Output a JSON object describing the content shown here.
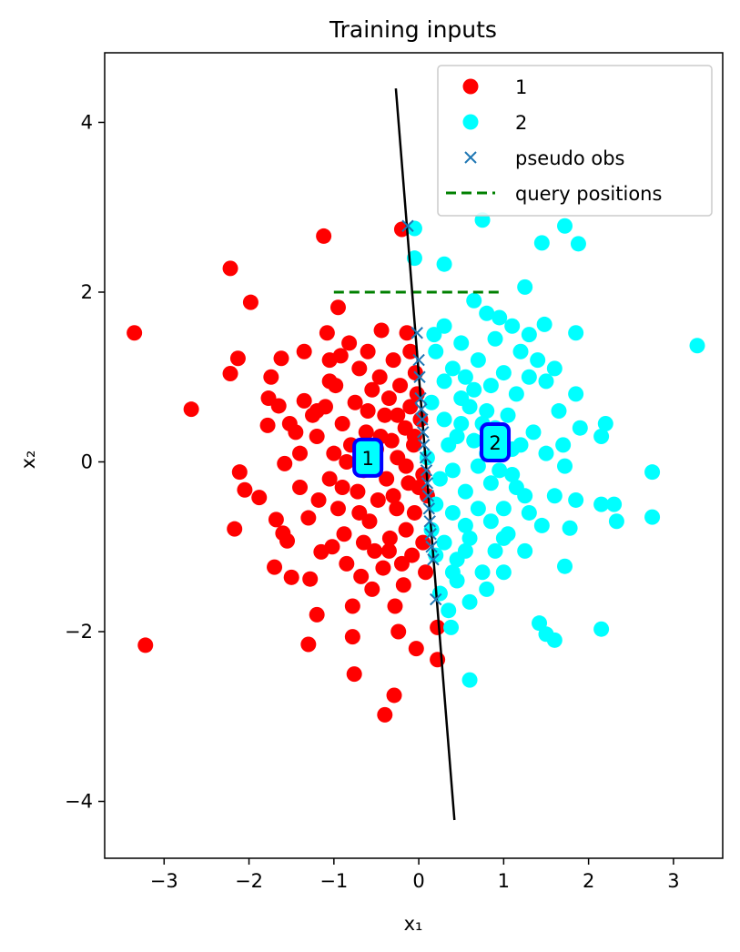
{
  "chart_data": {
    "type": "scatter",
    "title": "Training inputs",
    "xlabel": "x₁",
    "ylabel": "x₂",
    "xlim": [
      -3.7,
      3.58
    ],
    "ylim": [
      -4.67,
      4.82
    ],
    "xticks": [
      -3,
      -2,
      -1,
      0,
      1,
      2,
      3
    ],
    "xtick_labels": [
      "−3",
      "−2",
      "−1",
      "0",
      "1",
      "2",
      "3"
    ],
    "yticks": [
      -4,
      -2,
      0,
      2,
      4
    ],
    "ytick_labels": [
      "−4",
      "−2",
      "0",
      "2",
      "4"
    ],
    "grid": false,
    "legend_position": "top-right",
    "series": [
      {
        "name": "1",
        "marker": "circle",
        "color": "#ff0000",
        "points": [
          [
            -3.35,
            1.52
          ],
          [
            -3.22,
            -2.16
          ],
          [
            -2.68,
            0.62
          ],
          [
            -2.22,
            2.28
          ],
          [
            -2.22,
            1.04
          ],
          [
            -2.17,
            -0.79
          ],
          [
            -2.13,
            1.22
          ],
          [
            -2.11,
            -0.12
          ],
          [
            -2.05,
            -0.33
          ],
          [
            -1.98,
            1.88
          ],
          [
            -1.88,
            -0.42
          ],
          [
            -1.78,
            0.43
          ],
          [
            -1.77,
            0.75
          ],
          [
            -1.74,
            1.0
          ],
          [
            -1.7,
            -1.24
          ],
          [
            -1.68,
            -0.68
          ],
          [
            -1.65,
            0.66
          ],
          [
            -1.62,
            1.22
          ],
          [
            -1.6,
            -0.84
          ],
          [
            -1.58,
            -0.02
          ],
          [
            -1.55,
            -0.93
          ],
          [
            -1.52,
            0.45
          ],
          [
            -1.5,
            -1.36
          ],
          [
            -1.45,
            0.35
          ],
          [
            -1.4,
            0.1
          ],
          [
            -1.35,
            0.72
          ],
          [
            -1.3,
            -0.66
          ],
          [
            -1.28,
            -1.38
          ],
          [
            -1.3,
            -2.15
          ],
          [
            -1.25,
            0.55
          ],
          [
            -1.2,
            0.3
          ],
          [
            -1.18,
            -0.45
          ],
          [
            -1.15,
            -1.06
          ],
          [
            -1.2,
            -1.8
          ],
          [
            -1.1,
            0.65
          ],
          [
            -1.12,
            2.66
          ],
          [
            -1.08,
            1.52
          ],
          [
            -1.05,
            -0.2
          ],
          [
            -1.05,
            1.2
          ],
          [
            -1.02,
            -1.0
          ],
          [
            -1.0,
            0.1
          ],
          [
            -0.98,
            0.9
          ],
          [
            -0.95,
            -0.55
          ],
          [
            -0.95,
            1.82
          ],
          [
            -0.92,
            1.25
          ],
          [
            -0.9,
            0.45
          ],
          [
            -0.88,
            -0.85
          ],
          [
            -0.85,
            -1.2
          ],
          [
            -0.82,
            1.4
          ],
          [
            -0.8,
            0.2
          ],
          [
            -0.78,
            -2.06
          ],
          [
            -0.78,
            -1.7
          ],
          [
            -0.76,
            -2.5
          ],
          [
            -0.75,
            0.7
          ],
          [
            -0.72,
            -0.35
          ],
          [
            -0.7,
            1.1
          ],
          [
            -0.68,
            -1.35
          ],
          [
            -0.65,
            -0.1
          ],
          [
            -0.62,
            0.35
          ],
          [
            -0.6,
            1.3
          ],
          [
            -0.58,
            -0.7
          ],
          [
            -0.55,
            0.85
          ],
          [
            -0.52,
            -1.05
          ],
          [
            -0.5,
            0.15
          ],
          [
            -0.48,
            -0.45
          ],
          [
            -0.46,
            1.0
          ],
          [
            -0.44,
            1.55
          ],
          [
            -0.42,
            -1.25
          ],
          [
            -0.4,
            0.55
          ],
          [
            -0.38,
            -0.2
          ],
          [
            -0.35,
            0.75
          ],
          [
            -0.34,
            -0.9
          ],
          [
            -0.32,
            0.25
          ],
          [
            -0.3,
            1.2
          ],
          [
            -0.29,
            -2.75
          ],
          [
            -0.28,
            -1.7
          ],
          [
            -0.26,
            -0.55
          ],
          [
            -0.25,
            0.05
          ],
          [
            -0.24,
            -2.0
          ],
          [
            -0.22,
            0.9
          ],
          [
            -0.2,
            2.74
          ],
          [
            -0.18,
            -1.45
          ],
          [
            -0.16,
            0.4
          ],
          [
            -0.15,
            -0.8
          ],
          [
            -0.14,
            1.52
          ],
          [
            -0.12,
            -0.25
          ],
          [
            -0.1,
            0.65
          ],
          [
            -0.08,
            -1.1
          ],
          [
            -0.06,
            0.2
          ],
          [
            -0.05,
            -0.6
          ],
          [
            -0.04,
            1.05
          ],
          [
            -0.03,
            -2.2
          ],
          [
            -0.02,
            0.8
          ],
          [
            0.0,
            -0.3
          ],
          [
            0.02,
            0.5
          ],
          [
            0.05,
            -0.95
          ],
          [
            0.08,
            -1.3
          ],
          [
            0.1,
            -0.4
          ],
          [
            0.22,
            -1.95
          ],
          [
            0.22,
            -2.33
          ],
          [
            -0.4,
            -2.98
          ],
          [
            -1.05,
            0.95
          ],
          [
            -1.2,
            0.6
          ],
          [
            -0.9,
            -0.3
          ],
          [
            -0.7,
            -0.6
          ],
          [
            -0.6,
            0.6
          ],
          [
            -0.45,
            0.3
          ],
          [
            -0.3,
            -0.4
          ],
          [
            -0.2,
            -1.2
          ],
          [
            -0.1,
            1.3
          ],
          [
            -1.4,
            -0.3
          ],
          [
            -1.35,
            1.3
          ],
          [
            -0.85,
            0.0
          ],
          [
            -0.65,
            -0.95
          ],
          [
            -0.55,
            -1.5
          ],
          [
            -0.35,
            -1.05
          ],
          [
            -0.25,
            0.55
          ],
          [
            -0.15,
            -0.05
          ],
          [
            -0.05,
            0.3
          ],
          [
            0.05,
            -0.15
          ]
        ]
      },
      {
        "name": "2",
        "marker": "circle",
        "color": "#00ffff",
        "points": [
          [
            -0.05,
            2.75
          ],
          [
            -0.05,
            2.4
          ],
          [
            0.3,
            2.33
          ],
          [
            0.75,
            2.85
          ],
          [
            1.25,
            2.06
          ],
          [
            1.45,
            2.58
          ],
          [
            1.72,
            2.78
          ],
          [
            1.88,
            2.57
          ],
          [
            3.28,
            1.37
          ],
          [
            0.65,
            1.9
          ],
          [
            0.8,
            1.75
          ],
          [
            0.95,
            1.7
          ],
          [
            1.1,
            1.6
          ],
          [
            1.3,
            1.5
          ],
          [
            1.48,
            1.62
          ],
          [
            1.85,
            1.52
          ],
          [
            0.2,
            1.3
          ],
          [
            0.4,
            1.1
          ],
          [
            0.55,
            1.0
          ],
          [
            0.7,
            1.2
          ],
          [
            0.85,
            0.9
          ],
          [
            1.0,
            1.05
          ],
          [
            1.15,
            0.8
          ],
          [
            1.3,
            1.0
          ],
          [
            1.5,
            0.95
          ],
          [
            1.65,
            0.6
          ],
          [
            1.85,
            0.8
          ],
          [
            2.2,
            0.45
          ],
          [
            2.15,
            0.3
          ],
          [
            0.15,
            0.7
          ],
          [
            0.3,
            0.5
          ],
          [
            0.45,
            0.3
          ],
          [
            0.6,
            0.65
          ],
          [
            0.75,
            0.45
          ],
          [
            0.9,
            0.4
          ],
          [
            1.05,
            0.55
          ],
          [
            1.2,
            0.2
          ],
          [
            1.35,
            0.35
          ],
          [
            1.5,
            0.1
          ],
          [
            1.7,
            0.2
          ],
          [
            1.9,
            0.4
          ],
          [
            2.75,
            -0.12
          ],
          [
            2.75,
            -0.65
          ],
          [
            2.3,
            -0.5
          ],
          [
            2.33,
            -0.7
          ],
          [
            2.15,
            -0.5
          ],
          [
            1.85,
            -0.45
          ],
          [
            1.72,
            -0.05
          ],
          [
            0.1,
            0.05
          ],
          [
            0.25,
            -0.2
          ],
          [
            0.4,
            -0.1
          ],
          [
            0.55,
            -0.35
          ],
          [
            0.7,
            -0.05
          ],
          [
            0.85,
            -0.25
          ],
          [
            1.0,
            -0.55
          ],
          [
            1.15,
            -0.3
          ],
          [
            1.3,
            -0.6
          ],
          [
            1.45,
            -0.75
          ],
          [
            1.6,
            -0.4
          ],
          [
            1.78,
            -0.78
          ],
          [
            0.15,
            -0.8
          ],
          [
            0.3,
            -0.95
          ],
          [
            0.45,
            -1.15
          ],
          [
            0.6,
            -0.9
          ],
          [
            0.75,
            -1.3
          ],
          [
            0.9,
            -1.05
          ],
          [
            1.05,
            -0.85
          ],
          [
            1.25,
            -1.05
          ],
          [
            1.72,
            -1.23
          ],
          [
            0.25,
            -1.55
          ],
          [
            0.35,
            -1.75
          ],
          [
            0.45,
            -1.4
          ],
          [
            0.6,
            -1.65
          ],
          [
            0.8,
            -1.5
          ],
          [
            1.0,
            -1.3
          ],
          [
            0.38,
            -1.95
          ],
          [
            0.6,
            -2.57
          ],
          [
            1.42,
            -1.9
          ],
          [
            1.5,
            -2.03
          ],
          [
            1.6,
            -2.1
          ],
          [
            2.15,
            -1.97
          ],
          [
            0.3,
            0.95
          ],
          [
            0.5,
            0.75
          ],
          [
            0.65,
            0.25
          ],
          [
            0.8,
            0.1
          ],
          [
            0.95,
            -0.1
          ],
          [
            1.1,
            -0.15
          ],
          [
            1.25,
            -0.4
          ],
          [
            0.2,
            -0.5
          ],
          [
            0.4,
            -0.6
          ],
          [
            0.55,
            -0.75
          ],
          [
            0.7,
            -0.55
          ],
          [
            0.85,
            -0.7
          ],
          [
            1.0,
            -0.9
          ],
          [
            0.35,
            0.2
          ],
          [
            0.5,
            0.45
          ],
          [
            0.65,
            0.85
          ],
          [
            0.8,
            0.6
          ],
          [
            0.95,
            0.3
          ],
          [
            1.1,
            0.15
          ],
          [
            0.18,
            1.5
          ],
          [
            0.3,
            1.6
          ],
          [
            0.5,
            1.4
          ],
          [
            0.9,
            1.45
          ],
          [
            1.2,
            1.3
          ],
          [
            1.4,
            1.2
          ],
          [
            1.6,
            1.1
          ],
          [
            0.2,
            -1.1
          ],
          [
            0.4,
            -1.3
          ],
          [
            0.55,
            -1.05
          ]
        ]
      },
      {
        "name": "pseudo obs",
        "marker": "x",
        "color": "#1f77b4",
        "points": [
          [
            -0.13,
            2.78
          ],
          [
            -0.02,
            1.52
          ],
          [
            0.0,
            1.2
          ],
          [
            0.01,
            1.0
          ],
          [
            0.02,
            0.75
          ],
          [
            0.03,
            0.62
          ],
          [
            0.04,
            0.5
          ],
          [
            0.05,
            0.35
          ],
          [
            0.06,
            0.2
          ],
          [
            0.08,
            0.05
          ],
          [
            0.09,
            -0.1
          ],
          [
            0.1,
            -0.25
          ],
          [
            0.11,
            -0.4
          ],
          [
            0.12,
            -0.55
          ],
          [
            0.13,
            -0.7
          ],
          [
            0.14,
            -0.85
          ],
          [
            0.15,
            -1.0
          ],
          [
            0.17,
            -1.15
          ],
          [
            0.2,
            -1.62
          ]
        ]
      },
      {
        "name": "query positions",
        "marker": "dashed-line",
        "color": "#008000",
        "points": [
          [
            -1.0,
            2.0
          ],
          [
            1.0,
            2.0
          ]
        ]
      }
    ],
    "decision_boundary": {
      "color": "#000000",
      "points": [
        [
          -0.27,
          4.4
        ],
        [
          0.42,
          -4.22
        ]
      ]
    },
    "cluster_labels": [
      {
        "text": "1",
        "x": -0.6,
        "y": 0.05
      },
      {
        "text": "2",
        "x": 0.9,
        "y": 0.23
      }
    ]
  }
}
